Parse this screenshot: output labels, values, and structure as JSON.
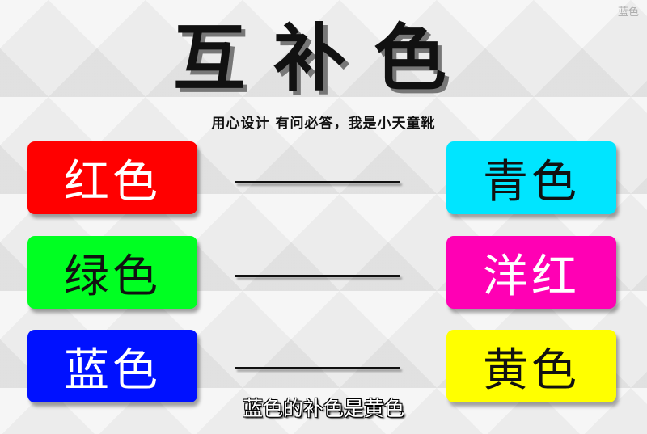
{
  "watermark": "蓝色",
  "title": "互补色",
  "subtitle": "用心设计 有问必答，我是小天童靴",
  "pairs": [
    {
      "left": {
        "label": "红色",
        "color": "#ff0000",
        "text_color": "#ffffff"
      },
      "right": {
        "label": "青色",
        "color": "#00e5ff",
        "text_color": "#111111"
      }
    },
    {
      "left": {
        "label": "绿色",
        "color": "#00ff22",
        "text_color": "#111111"
      },
      "right": {
        "label": "洋红",
        "color": "#ff00b4",
        "text_color": "#ffffff"
      }
    },
    {
      "left": {
        "label": "蓝色",
        "color": "#0011ff",
        "text_color": "#ffffff"
      },
      "right": {
        "label": "黄色",
        "color": "#ffff00",
        "text_color": "#111111"
      }
    }
  ],
  "caption": "蓝色的补色是黄色"
}
